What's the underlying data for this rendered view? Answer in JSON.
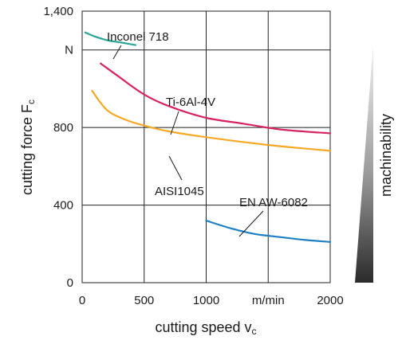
{
  "chart_data": {
    "type": "line",
    "xlabel": {
      "text": "cutting speed v",
      "sub": "c"
    },
    "ylabel": {
      "text": "cutting force F",
      "sub": "c"
    },
    "xlim": [
      0,
      2000
    ],
    "ylim": [
      0,
      1400
    ],
    "x_ticks": [
      {
        "value": 0,
        "label": "0"
      },
      {
        "value": 500,
        "label": "500"
      },
      {
        "value": 1000,
        "label": "1000"
      },
      {
        "value": 1500,
        "label": "m/min"
      },
      {
        "value": 2000,
        "label": "2000"
      }
    ],
    "y_ticks": [
      {
        "value": 0,
        "label": "0"
      },
      {
        "value": 400,
        "label": "400"
      },
      {
        "value": 800,
        "label": "800"
      },
      {
        "value": 1200,
        "label": "N"
      },
      {
        "value": 1400,
        "label": "1,400"
      }
    ],
    "grid": true,
    "series": [
      {
        "name": "Inconel 718",
        "color": "#2aa596",
        "x": [
          25,
          100,
          200,
          300,
          430
        ],
        "y": [
          1290,
          1270,
          1250,
          1240,
          1225
        ]
      },
      {
        "name": "Ti-6Al-4V",
        "color": "#d6245f",
        "x": [
          150,
          300,
          500,
          700,
          1000,
          1300,
          1600,
          2000
        ],
        "y": [
          1130,
          1060,
          970,
          910,
          850,
          820,
          790,
          770
        ]
      },
      {
        "name": "AISI1045",
        "color": "#f7a826",
        "x": [
          80,
          200,
          350,
          500,
          700,
          1000,
          1500,
          2000
        ],
        "y": [
          990,
          890,
          840,
          810,
          780,
          750,
          710,
          680
        ]
      },
      {
        "name": "EN AW-6082",
        "color": "#1f7fc4",
        "x": [
          1000,
          1200,
          1400,
          1600,
          1800,
          2000
        ],
        "y": [
          320,
          280,
          250,
          235,
          220,
          210
        ]
      }
    ],
    "side_label": "machinability"
  }
}
